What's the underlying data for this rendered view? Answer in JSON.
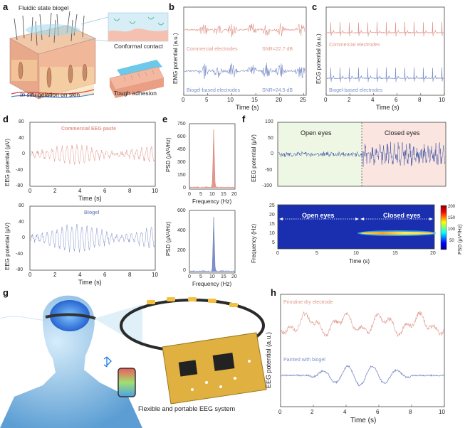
{
  "panels": {
    "a": {
      "letter": "a",
      "fluidic": "Fluidic state biogel",
      "conformal": "Conformal contact",
      "tough": "Tough adhesion",
      "insitu_italic": "In situ",
      "insitu_rest": " gelation on skin"
    },
    "b": {
      "letter": "b",
      "ylabel": "EMG potential (a.u.)",
      "xlabel": "Time (s)",
      "commercial": "Commercial electrodes",
      "snr1": "SNR=22.7 dB",
      "biogel": "Biogel-based electrodes",
      "snr2": "SNR=24.5 dB",
      "xticks": [
        "0",
        "5",
        "10",
        "15",
        "20",
        "25"
      ]
    },
    "c": {
      "letter": "c",
      "ylabel": "ECG potential (a.u.)",
      "xlabel": "Time (s)",
      "commercial": "Commercial electrodes",
      "biogel": "Biogel-based electrodes",
      "xticks": [
        "0",
        "2",
        "4",
        "6",
        "8",
        "10"
      ]
    },
    "d": {
      "letter": "d",
      "ylabel": "EEG potential (μV)",
      "xlabel": "Time (s)",
      "top_title": "Commercial EEG paste",
      "bottom_title": "Biogel",
      "yticks": [
        "80",
        "40",
        "0",
        "-40",
        "-80"
      ],
      "xticks": [
        "0",
        "2",
        "4",
        "6",
        "8",
        "10"
      ]
    },
    "e": {
      "letter": "e",
      "ylabel": "PSD (μV²/Hz)",
      "xlabel": "Frequency (Hz)",
      "top_yticks": [
        "750",
        "600",
        "450",
        "300",
        "150",
        "0"
      ],
      "bottom_yticks": [
        "600",
        "400",
        "200",
        "0"
      ],
      "xticks": [
        "0",
        "5",
        "10",
        "15",
        "20"
      ]
    },
    "f": {
      "letter": "f",
      "ylabel": "EEG potential (μV)",
      "open": "Open eyes",
      "closed": "Closed eyes",
      "yticks": [
        "100",
        "50",
        "0",
        "-50",
        "-100"
      ],
      "spec_ylabel": "Frequency (Hz)",
      "spec_xlabel": "Time (s)",
      "spec_yticks": [
        "25",
        "20",
        "15",
        "10",
        "5"
      ],
      "spec_xticks": [
        "0",
        "5",
        "10",
        "15",
        "20"
      ],
      "cbar_label": "PSD (μV²/Hz)",
      "cbar_ticks": [
        "200",
        "150",
        "100",
        "50"
      ]
    },
    "g": {
      "letter": "g",
      "caption": "Flexible and portable EEG system"
    },
    "h": {
      "letter": "h",
      "ylabel": "EEG potential (a.u.)",
      "xlabel": "Time (s)",
      "pristine": "Prinstine dry electrode",
      "painted": "Painted with biogel",
      "xticks": [
        "0",
        "2",
        "4",
        "6",
        "8",
        "10"
      ]
    }
  },
  "colors": {
    "red": "#e0978c",
    "blue": "#7f90c9",
    "open_bg": "#eef6e4",
    "closed_bg": "#fbe5e0"
  }
}
